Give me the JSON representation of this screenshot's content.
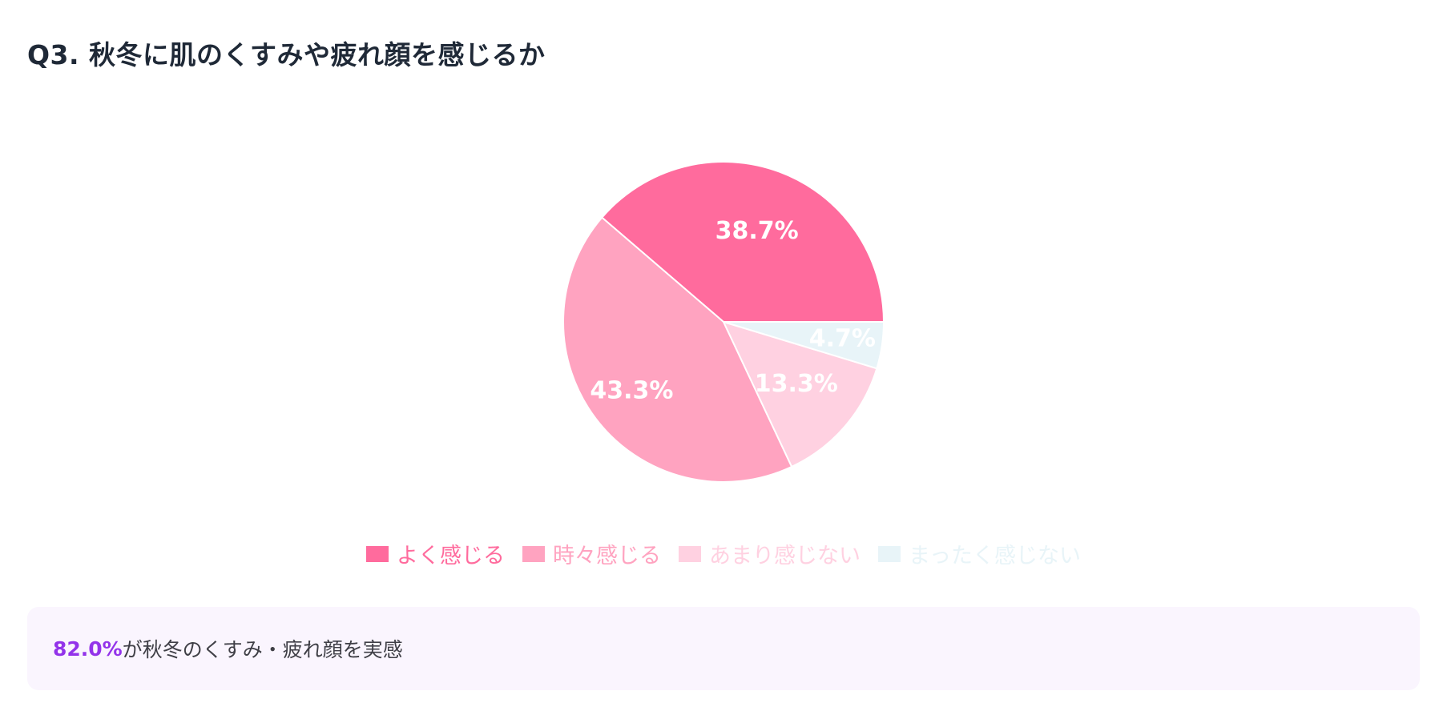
{
  "header": {
    "title": "Q3. 秋冬に肌のくすみや疲れ顔を感じるか"
  },
  "chart_data": {
    "type": "pie",
    "title": "Q3. 秋冬に肌のくすみや疲れ顔を感じるか",
    "categories": [
      "よく感じる",
      "時々感じる",
      "あまり感じない",
      "まったく感じない"
    ],
    "values": [
      38.7,
      43.3,
      13.3,
      4.7
    ],
    "value_labels": [
      "38.7%",
      "43.3%",
      "13.3%",
      "4.7%"
    ],
    "colors": [
      "#ff6b9d",
      "#ffa3c0",
      "#ffd1e1",
      "#e8f4f8"
    ],
    "start": "3 o'clock, counter-clockwise for first slice",
    "legend_position": "bottom"
  },
  "legend": {
    "items": [
      {
        "label": "よく感じる",
        "color": "#ff6b9d"
      },
      {
        "label": "時々感じる",
        "color": "#ffa3c0"
      },
      {
        "label": "あまり感じない",
        "color": "#ffd1e1"
      },
      {
        "label": "まったく感じない",
        "color": "#e8f4f8"
      }
    ]
  },
  "callout": {
    "highlight": "82.0%",
    "text": "が秋冬のくすみ・疲れ顔を実感",
    "highlight_color": "#9333ea"
  }
}
